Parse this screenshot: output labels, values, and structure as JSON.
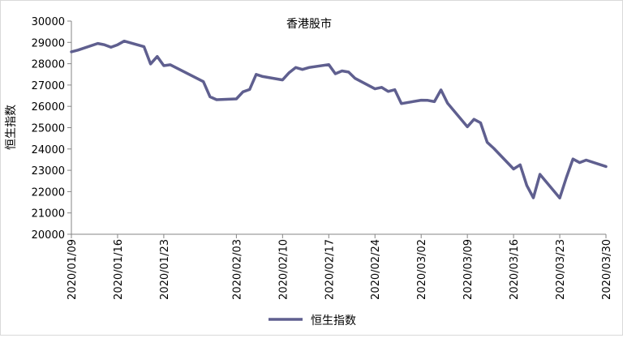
{
  "chart_data": {
    "type": "line",
    "title": "香港股市",
    "xlabel": "",
    "ylabel": "恒生指数",
    "ylim": [
      20000,
      30000
    ],
    "yticks": [
      "20000",
      "21000",
      "22000",
      "23000",
      "24000",
      "25000",
      "26000",
      "27000",
      "28000",
      "29000",
      "30000"
    ],
    "xticks": [
      "2020/01/09",
      "2020/01/16",
      "2020/01/23",
      "2020/02/03",
      "2020/02/10",
      "2020/02/17",
      "2020/02/24",
      "2020/03/02",
      "2020/03/09",
      "2020/03/16",
      "2020/03/23",
      "2020/03/30"
    ],
    "legend_position": "bottom",
    "grid": false,
    "series": [
      {
        "name": "恒生指数",
        "color": "#5f5f8f",
        "points": [
          [
            "2020/01/09",
            28560
          ],
          [
            "2020/01/10",
            28640
          ],
          [
            "2020/01/13",
            28950
          ],
          [
            "2020/01/14",
            28890
          ],
          [
            "2020/01/15",
            28770
          ],
          [
            "2020/01/16",
            28890
          ],
          [
            "2020/01/17",
            29060
          ],
          [
            "2020/01/20",
            28800
          ],
          [
            "2020/01/21",
            27990
          ],
          [
            "2020/01/22",
            28340
          ],
          [
            "2020/01/23",
            27910
          ],
          [
            "2020/01/24",
            27950
          ],
          [
            "2020/01/29",
            27160
          ],
          [
            "2020/01/30",
            26450
          ],
          [
            "2020/01/31",
            26310
          ],
          [
            "2020/02/03",
            26350
          ],
          [
            "2020/02/04",
            26680
          ],
          [
            "2020/02/05",
            26790
          ],
          [
            "2020/02/06",
            27500
          ],
          [
            "2020/02/07",
            27400
          ],
          [
            "2020/02/10",
            27240
          ],
          [
            "2020/02/11",
            27580
          ],
          [
            "2020/02/12",
            27820
          ],
          [
            "2020/02/13",
            27730
          ],
          [
            "2020/02/14",
            27820
          ],
          [
            "2020/02/17",
            27960
          ],
          [
            "2020/02/18",
            27530
          ],
          [
            "2020/02/19",
            27660
          ],
          [
            "2020/02/20",
            27610
          ],
          [
            "2020/02/21",
            27310
          ],
          [
            "2020/02/24",
            26820
          ],
          [
            "2020/02/25",
            26890
          ],
          [
            "2020/02/26",
            26700
          ],
          [
            "2020/02/27",
            26780
          ],
          [
            "2020/02/28",
            26130
          ],
          [
            "2020/03/02",
            26290
          ],
          [
            "2020/03/03",
            26280
          ],
          [
            "2020/03/04",
            26220
          ],
          [
            "2020/03/05",
            26770
          ],
          [
            "2020/03/06",
            26150
          ],
          [
            "2020/03/09",
            25040
          ],
          [
            "2020/03/10",
            25390
          ],
          [
            "2020/03/11",
            25230
          ],
          [
            "2020/03/12",
            24310
          ],
          [
            "2020/03/13",
            24030
          ],
          [
            "2020/03/16",
            23060
          ],
          [
            "2020/03/17",
            23260
          ],
          [
            "2020/03/18",
            22290
          ],
          [
            "2020/03/19",
            21710
          ],
          [
            "2020/03/20",
            22810
          ],
          [
            "2020/03/23",
            21700
          ],
          [
            "2020/03/24",
            22660
          ],
          [
            "2020/03/25",
            23530
          ],
          [
            "2020/03/26",
            23360
          ],
          [
            "2020/03/27",
            23480
          ],
          [
            "2020/03/30",
            23180
          ]
        ]
      }
    ]
  }
}
